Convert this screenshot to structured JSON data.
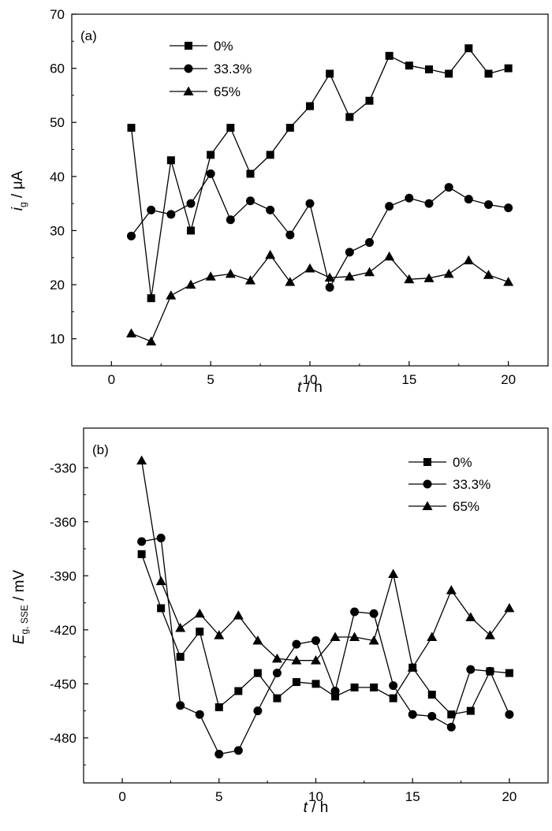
{
  "chart_data": [
    {
      "type": "line",
      "panel_label": "(a)",
      "ylabel": {
        "main": "i",
        "sub": "g",
        "unit": " / μA"
      },
      "xlabel": {
        "main": "t",
        "unit": " / h"
      },
      "xlim": [
        -2,
        22
      ],
      "ylim": [
        5,
        70
      ],
      "xticks": [
        0,
        5,
        10,
        15,
        20
      ],
      "yticks": [
        10,
        20,
        30,
        40,
        50,
        60,
        70
      ],
      "grid": false,
      "legend_position": "top-left",
      "x": [
        1,
        2,
        3,
        4,
        5,
        6,
        7,
        8,
        9,
        10,
        11,
        12,
        13,
        14,
        15,
        16,
        17,
        18,
        19,
        20
      ],
      "series": [
        {
          "name": "0%",
          "marker": "square",
          "values": [
            49,
            17.5,
            43,
            30,
            44,
            49,
            40.5,
            44,
            49,
            53,
            59,
            51,
            54,
            62.3,
            60.5,
            59.8,
            59,
            63.7,
            59,
            60
          ]
        },
        {
          "name": "33.3%",
          "marker": "circle",
          "values": [
            29,
            33.8,
            33,
            35,
            40.5,
            32,
            35.5,
            33.8,
            29.2,
            35,
            19.5,
            26,
            27.8,
            34.5,
            36,
            35,
            38,
            35.8,
            34.8,
            34.2
          ]
        },
        {
          "name": "65%",
          "marker": "triangle",
          "values": [
            11,
            9.5,
            18,
            20,
            21.5,
            22,
            20.8,
            25.5,
            20.5,
            23,
            21.3,
            21.5,
            22.3,
            25.2,
            21,
            21.2,
            22,
            24.5,
            21.8,
            20.5
          ]
        }
      ]
    },
    {
      "type": "line",
      "panel_label": "(b)",
      "ylabel": {
        "main": "E",
        "sub": "g, SSE",
        "unit": " / mV"
      },
      "xlabel": {
        "main": "t",
        "unit": " / h"
      },
      "xlim": [
        -2,
        22
      ],
      "ylim": [
        -505,
        -308
      ],
      "xticks": [
        0,
        5,
        10,
        15,
        20
      ],
      "yticks": [
        -480,
        -450,
        -420,
        -390,
        -360,
        -330
      ],
      "grid": false,
      "legend_position": "top-right",
      "x": [
        1,
        2,
        3,
        4,
        5,
        6,
        7,
        8,
        9,
        10,
        11,
        12,
        13,
        14,
        15,
        16,
        17,
        18,
        19,
        20
      ],
      "series": [
        {
          "name": "0%",
          "marker": "square",
          "values": [
            -378,
            -408,
            -435,
            -421,
            -463,
            -454,
            -444,
            -458,
            -449,
            -450,
            -457,
            -452,
            -452,
            -458,
            -441,
            -456,
            -467,
            -465,
            -443,
            -444
          ]
        },
        {
          "name": "33.3%",
          "marker": "circle",
          "values": [
            -371,
            -369,
            -462,
            -467,
            -489,
            -487,
            -465,
            -444,
            -428,
            -426,
            -454,
            -410,
            -411,
            -451,
            -467,
            -468,
            -474,
            -442,
            -443,
            -467
          ]
        },
        {
          "name": "65%",
          "marker": "triangle",
          "values": [
            -326,
            -393,
            -419,
            -411,
            -423,
            -412,
            -426,
            -436,
            -437,
            -437,
            -424,
            -424,
            -426,
            -389,
            -441,
            -424,
            -398,
            -413,
            -423,
            -408
          ]
        }
      ]
    }
  ]
}
